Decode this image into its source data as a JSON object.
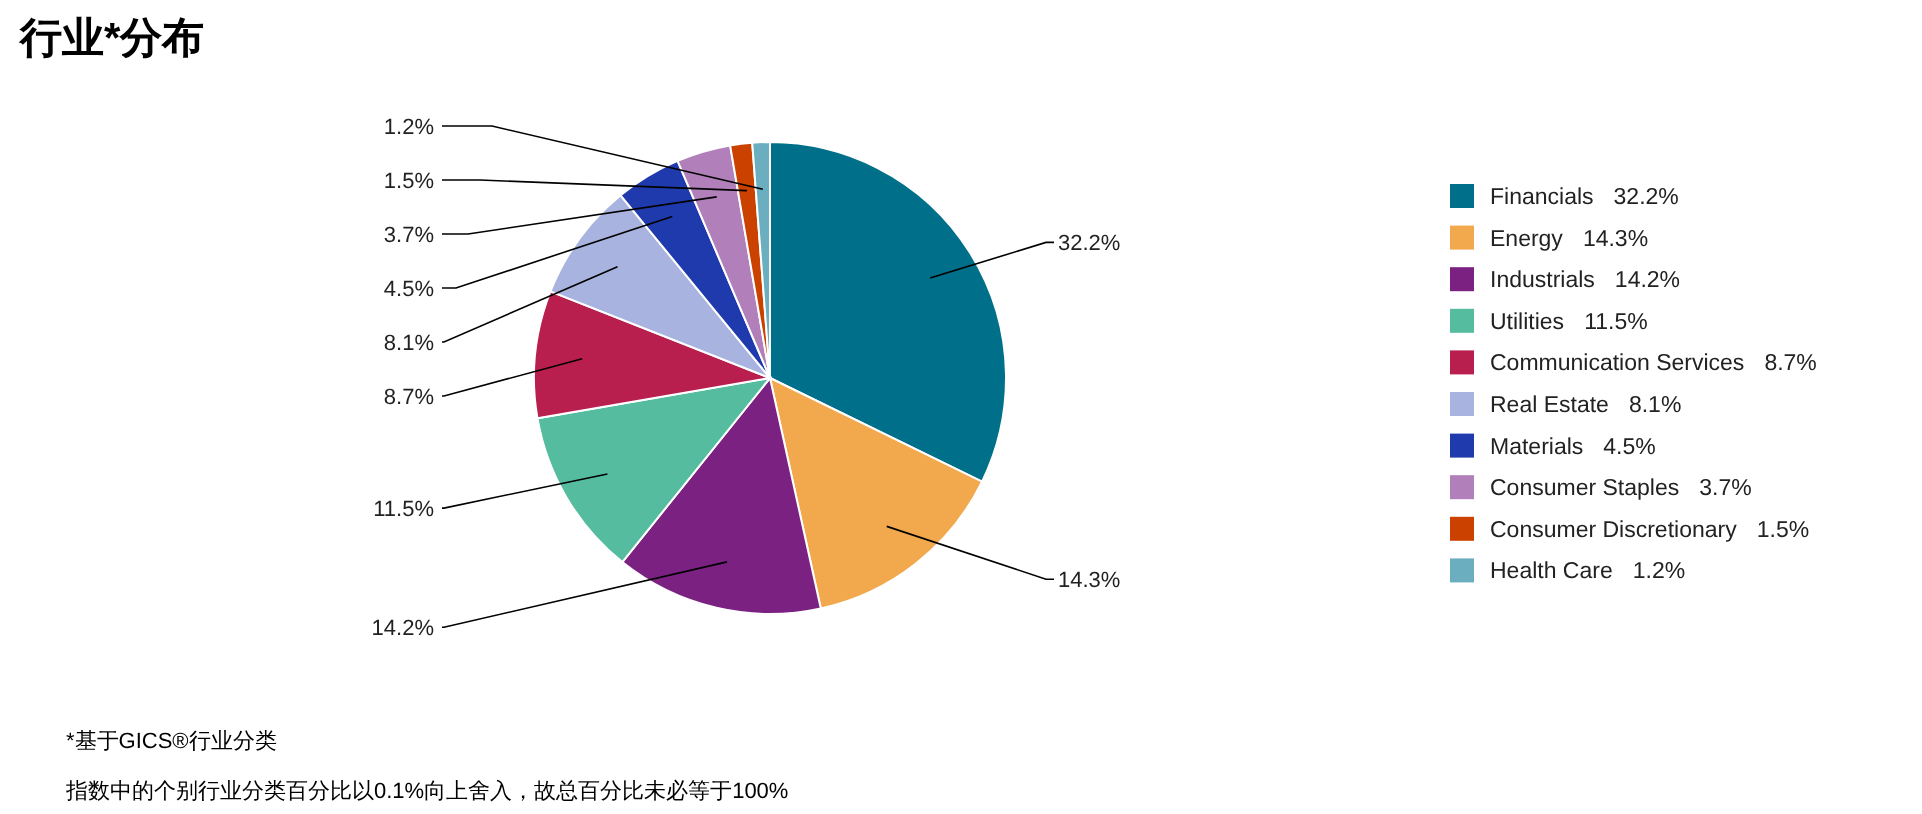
{
  "chart_data": {
    "type": "pie",
    "title": "行业*分布",
    "categories": [
      "Financials",
      "Energy",
      "Industrials",
      "Utilities",
      "Communication Services",
      "Real Estate",
      "Materials",
      "Consumer Staples",
      "Consumer Discretionary",
      "Health Care"
    ],
    "values": [
      32.2,
      14.3,
      14.2,
      11.5,
      8.7,
      8.1,
      4.5,
      3.7,
      1.5,
      1.2
    ],
    "colors": [
      "#006f8a",
      "#f2a84c",
      "#7b2182",
      "#55bc9f",
      "#b81f4e",
      "#a8b4df",
      "#1f3aad",
      "#b17fba",
      "#cb4200",
      "#6aaec0"
    ],
    "value_labels": [
      "32.2%",
      "14.3%",
      "14.2%",
      "11.5%",
      "8.7%",
      "8.1%",
      "4.5%",
      "3.7%",
      "1.5%",
      "1.2%"
    ],
    "legend": "right",
    "annotations": [
      "*基于GICS®行业分类",
      "指数中的个别行业分类百分比以0.1%向上舍入，故总百分比未必等于100%"
    ]
  }
}
